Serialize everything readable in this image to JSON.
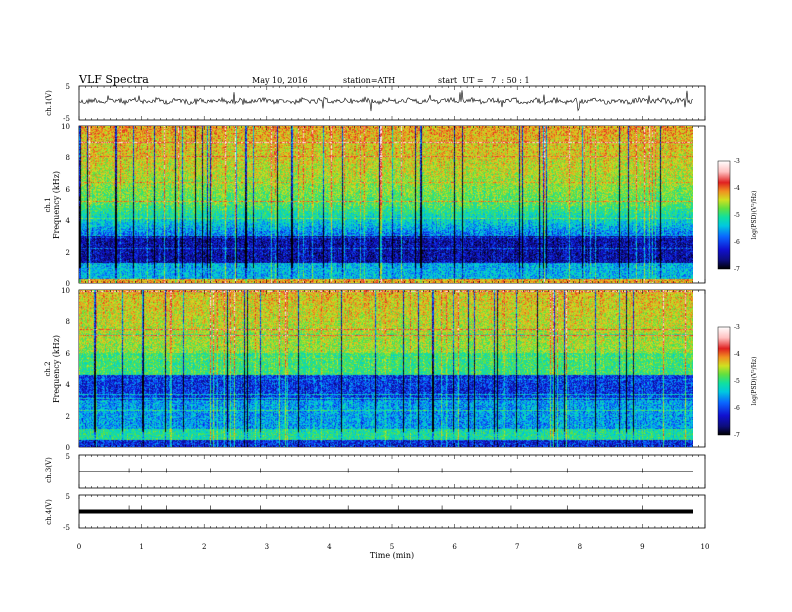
{
  "header": {
    "title": "VLF Spectra",
    "date": "May 10, 2016",
    "station": "station=ATH",
    "start": "start  UT =   7  : 50 : 1"
  },
  "colors": {
    "colormap": [
      "#000000",
      "#0d0d7a",
      "#1010d0",
      "#0a66ff",
      "#00c8e0",
      "#10e0a0",
      "#60e040",
      "#d0e020",
      "#f09020",
      "#e02020",
      "#ffc0c0",
      "#ffffff"
    ]
  },
  "chart_data": [
    {
      "type": "line",
      "name": "ch1-waveform",
      "ylabel": "ch.1(V)",
      "ylim": [
        -5,
        5
      ],
      "yticks": [
        "5",
        "-5"
      ],
      "xlim": [
        0,
        10
      ]
    },
    {
      "type": "heatmap",
      "name": "ch1-spectrogram",
      "ylabel_top": "ch.1",
      "ylabel": "Frequency  (kHz)",
      "ylim": [
        0,
        10
      ],
      "yticks": [
        "0",
        "2",
        "4",
        "6",
        "8",
        "10"
      ],
      "colorbar": {
        "label": "log(PSD)(V²/Hz)",
        "range": [
          -7,
          -3
        ],
        "ticks": [
          "-3",
          "-4",
          "-5",
          "-6",
          "-7"
        ]
      }
    },
    {
      "type": "heatmap",
      "name": "ch2-spectrogram",
      "ylabel_top": "ch.2",
      "ylabel": "Frequency  (kHz)",
      "ylim": [
        0,
        10
      ],
      "yticks": [
        "0",
        "2",
        "4",
        "6",
        "8",
        "10"
      ],
      "colorbar": {
        "label": "log(PSD)(V²/Hz)",
        "range": [
          -7,
          -3
        ],
        "ticks": [
          "-3",
          "-4",
          "-5",
          "-6",
          "-7"
        ]
      }
    },
    {
      "type": "line",
      "name": "ch3-waveform",
      "ylabel": "ch.3(V)",
      "ylim": [
        -5,
        5
      ],
      "yticks": [
        "5"
      ]
    },
    {
      "type": "line",
      "name": "ch4-waveform",
      "ylabel": "ch.4(V)",
      "ylim": [
        -5,
        5
      ],
      "yticks": [
        "5",
        "-5"
      ]
    }
  ],
  "xaxis": {
    "label": "Time  (min)",
    "range": [
      0,
      10
    ],
    "ticks": [
      "0",
      "1",
      "2",
      "3",
      "4",
      "5",
      "6",
      "7",
      "8",
      "9",
      "10"
    ]
  }
}
